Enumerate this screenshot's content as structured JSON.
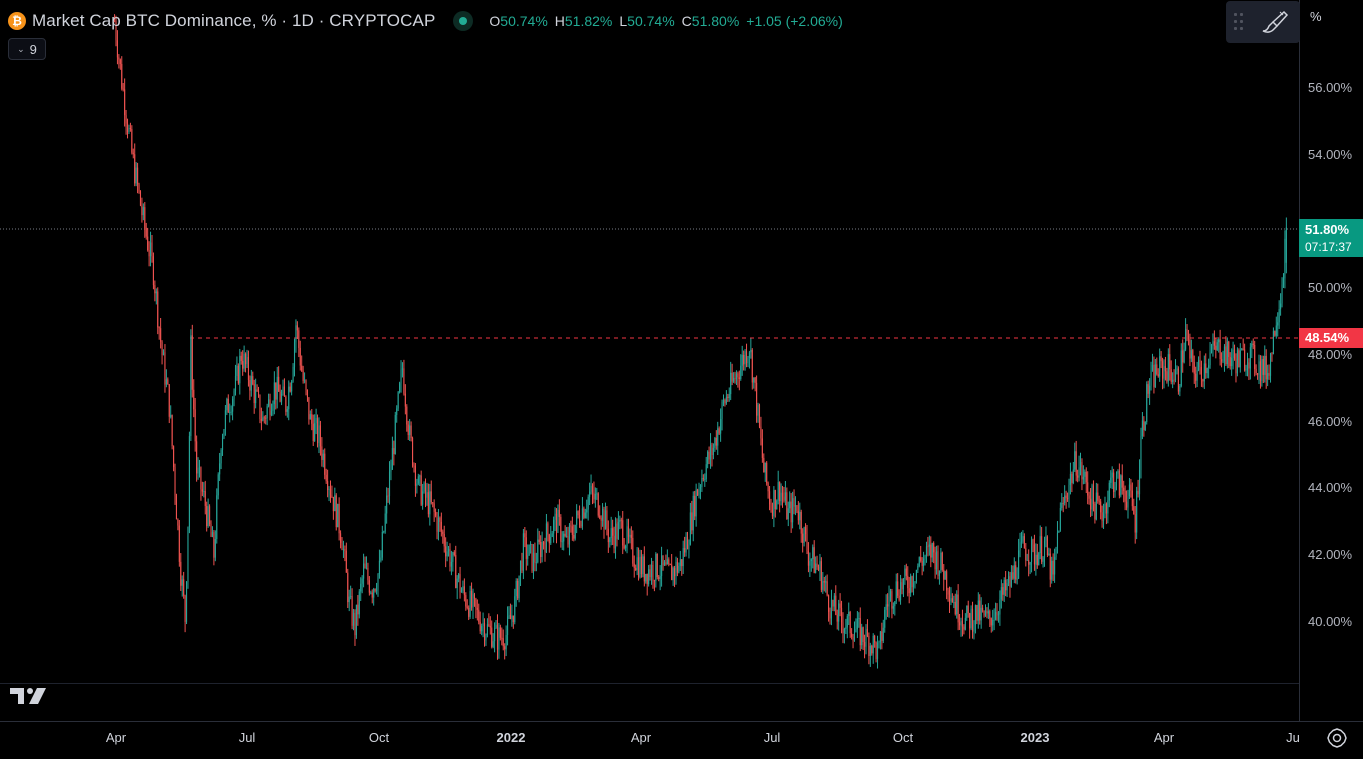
{
  "header": {
    "symbol_icon": "bitcoin-icon",
    "symbol_icon_glyph": "₿",
    "title": "Market Cap BTC Dominance, % · 1D · CRYPTOCAP",
    "ohlc": [
      {
        "key": "O",
        "value": "50.74%"
      },
      {
        "key": "H",
        "value": "51.82%"
      },
      {
        "key": "L",
        "value": "50.74%"
      },
      {
        "key": "C",
        "value": "51.80%"
      }
    ],
    "change": "+1.05 (+2.06%)"
  },
  "indicators": {
    "count": "9"
  },
  "price_axis": {
    "unit": "%",
    "labels": [
      "56.00%",
      "54.00%",
      "50.00%",
      "48.00%",
      "46.00%",
      "44.00%",
      "42.00%",
      "40.00%"
    ],
    "current_price": "51.80%",
    "countdown": "07:17:37",
    "level_price": "48.54%"
  },
  "time_axis": {
    "labels": [
      "Apr",
      "Jul",
      "Oct",
      "2022",
      "Apr",
      "Jul",
      "Oct",
      "2023",
      "Apr",
      "Ju"
    ]
  },
  "colors": {
    "up": "#26a69a",
    "down": "#ef5350",
    "current_tag": "#089981",
    "level_tag": "#f23645",
    "background": "#000000"
  },
  "chart_data": {
    "type": "candlestick",
    "title": "Market Cap BTC Dominance, % · 1D · CRYPTOCAP",
    "interval": "1D",
    "y_unit": "%",
    "ylim": [
      38.2,
      57.8
    ],
    "x_start": "2021-03-01",
    "x_end": "2023-06-23",
    "grid": false,
    "horizontal_level": 48.54,
    "last_close": 51.8,
    "path": [
      [
        "2021-03-31",
        58.0
      ],
      [
        "2021-04-05",
        56.2
      ],
      [
        "2021-04-12",
        54.0
      ],
      [
        "2021-04-20",
        52.0
      ],
      [
        "2021-04-27",
        50.5
      ],
      [
        "2021-05-03",
        48.0
      ],
      [
        "2021-05-08",
        46.5
      ],
      [
        "2021-05-12",
        44.0
      ],
      [
        "2021-05-16",
        41.5
      ],
      [
        "2021-05-19",
        40.1
      ],
      [
        "2021-05-21",
        43.0
      ],
      [
        "2021-05-23",
        48.2
      ],
      [
        "2021-05-27",
        44.5
      ],
      [
        "2021-06-02",
        43.5
      ],
      [
        "2021-06-08",
        42.0
      ],
      [
        "2021-06-13",
        45.5
      ],
      [
        "2021-06-18",
        46.5
      ],
      [
        "2021-06-23",
        47.0
      ],
      [
        "2021-06-27",
        48.0
      ],
      [
        "2021-07-05",
        47.0
      ],
      [
        "2021-07-12",
        46.0
      ],
      [
        "2021-07-20",
        47.0
      ],
      [
        "2021-07-28",
        46.5
      ],
      [
        "2021-08-01",
        47.5
      ],
      [
        "2021-08-04",
        48.9
      ],
      [
        "2021-08-09",
        47.2
      ],
      [
        "2021-08-14",
        46.0
      ],
      [
        "2021-08-20",
        45.5
      ],
      [
        "2021-08-28",
        44.0
      ],
      [
        "2021-09-05",
        42.5
      ],
      [
        "2021-09-10",
        40.5
      ],
      [
        "2021-09-14",
        39.8
      ],
      [
        "2021-09-20",
        41.5
      ],
      [
        "2021-09-26",
        41.0
      ],
      [
        "2021-10-01",
        41.5
      ],
      [
        "2021-10-06",
        43.5
      ],
      [
        "2021-10-10",
        45.0
      ],
      [
        "2021-10-17",
        47.6
      ],
      [
        "2021-10-22",
        45.5
      ],
      [
        "2021-10-28",
        44.0
      ],
      [
        "2021-11-05",
        43.5
      ],
      [
        "2021-11-12",
        42.8
      ],
      [
        "2021-11-20",
        41.8
      ],
      [
        "2021-11-28",
        40.8
      ],
      [
        "2021-12-06",
        40.3
      ],
      [
        "2021-12-14",
        39.8
      ],
      [
        "2021-12-22",
        39.5
      ],
      [
        "2021-12-28",
        39.6
      ],
      [
        "2022-01-03",
        40.5
      ],
      [
        "2022-01-09",
        42.2
      ],
      [
        "2022-01-16",
        41.8
      ],
      [
        "2022-01-24",
        42.5
      ],
      [
        "2022-02-01",
        43.0
      ],
      [
        "2022-02-08",
        42.3
      ],
      [
        "2022-02-15",
        43.0
      ],
      [
        "2022-02-24",
        43.8
      ],
      [
        "2022-03-03",
        43.5
      ],
      [
        "2022-03-10",
        42.5
      ],
      [
        "2022-03-18",
        42.8
      ],
      [
        "2022-03-26",
        42.0
      ],
      [
        "2022-04-03",
        41.5
      ],
      [
        "2022-04-12",
        41.6
      ],
      [
        "2022-04-20",
        41.4
      ],
      [
        "2022-04-28",
        41.7
      ],
      [
        "2022-05-03",
        42.5
      ],
      [
        "2022-05-09",
        43.8
      ],
      [
        "2022-05-14",
        44.5
      ],
      [
        "2022-05-21",
        45.2
      ],
      [
        "2022-05-28",
        46.5
      ],
      [
        "2022-06-04",
        47.2
      ],
      [
        "2022-06-10",
        47.8
      ],
      [
        "2022-06-15",
        48.3
      ],
      [
        "2022-06-20",
        46.5
      ],
      [
        "2022-06-25",
        44.5
      ],
      [
        "2022-06-30",
        43.5
      ],
      [
        "2022-07-06",
        44.0
      ],
      [
        "2022-07-12",
        43.2
      ],
      [
        "2022-07-18",
        43.5
      ],
      [
        "2022-07-26",
        42.0
      ],
      [
        "2022-08-03",
        41.5
      ],
      [
        "2022-08-10",
        40.5
      ],
      [
        "2022-08-18",
        40.0
      ],
      [
        "2022-08-26",
        39.8
      ],
      [
        "2022-09-03",
        39.5
      ],
      [
        "2022-09-09",
        39.3
      ],
      [
        "2022-09-13",
        39.0
      ],
      [
        "2022-09-18",
        40.5
      ],
      [
        "2022-09-25",
        41.0
      ],
      [
        "2022-10-04",
        41.2
      ],
      [
        "2022-10-12",
        41.8
      ],
      [
        "2022-10-20",
        42.1
      ],
      [
        "2022-10-28",
        41.5
      ],
      [
        "2022-11-05",
        40.5
      ],
      [
        "2022-11-12",
        40.0
      ],
      [
        "2022-11-20",
        40.2
      ],
      [
        "2022-11-28",
        40.0
      ],
      [
        "2022-12-06",
        40.6
      ],
      [
        "2022-12-14",
        41.2
      ],
      [
        "2022-12-22",
        42.2
      ],
      [
        "2022-12-30",
        42.0
      ],
      [
        "2023-01-06",
        42.3
      ],
      [
        "2023-01-12",
        41.2
      ],
      [
        "2023-01-16",
        43.0
      ],
      [
        "2023-01-22",
        44.0
      ],
      [
        "2023-01-28",
        44.8
      ],
      [
        "2023-02-03",
        44.2
      ],
      [
        "2023-02-09",
        43.5
      ],
      [
        "2023-02-16",
        43.3
      ],
      [
        "2023-02-22",
        44.3
      ],
      [
        "2023-03-01",
        44.0
      ],
      [
        "2023-03-07",
        43.6
      ],
      [
        "2023-03-10",
        43.0
      ],
      [
        "2023-03-14",
        45.5
      ],
      [
        "2023-03-19",
        47.0
      ],
      [
        "2023-03-25",
        47.5
      ],
      [
        "2023-04-02",
        47.6
      ],
      [
        "2023-04-09",
        47.2
      ],
      [
        "2023-04-14",
        48.6
      ],
      [
        "2023-04-19",
        47.5
      ],
      [
        "2023-04-25",
        47.5
      ],
      [
        "2023-05-01",
        48.0
      ],
      [
        "2023-05-08",
        48.2
      ],
      [
        "2023-05-14",
        47.9
      ],
      [
        "2023-05-21",
        47.8
      ],
      [
        "2023-05-28",
        48.0
      ],
      [
        "2023-06-05",
        47.6
      ],
      [
        "2023-06-10",
        47.5
      ],
      [
        "2023-06-13",
        48.2
      ],
      [
        "2023-06-16",
        49.2
      ],
      [
        "2023-06-19",
        49.8
      ],
      [
        "2023-06-21",
        50.7
      ],
      [
        "2023-06-23",
        51.8
      ]
    ]
  }
}
